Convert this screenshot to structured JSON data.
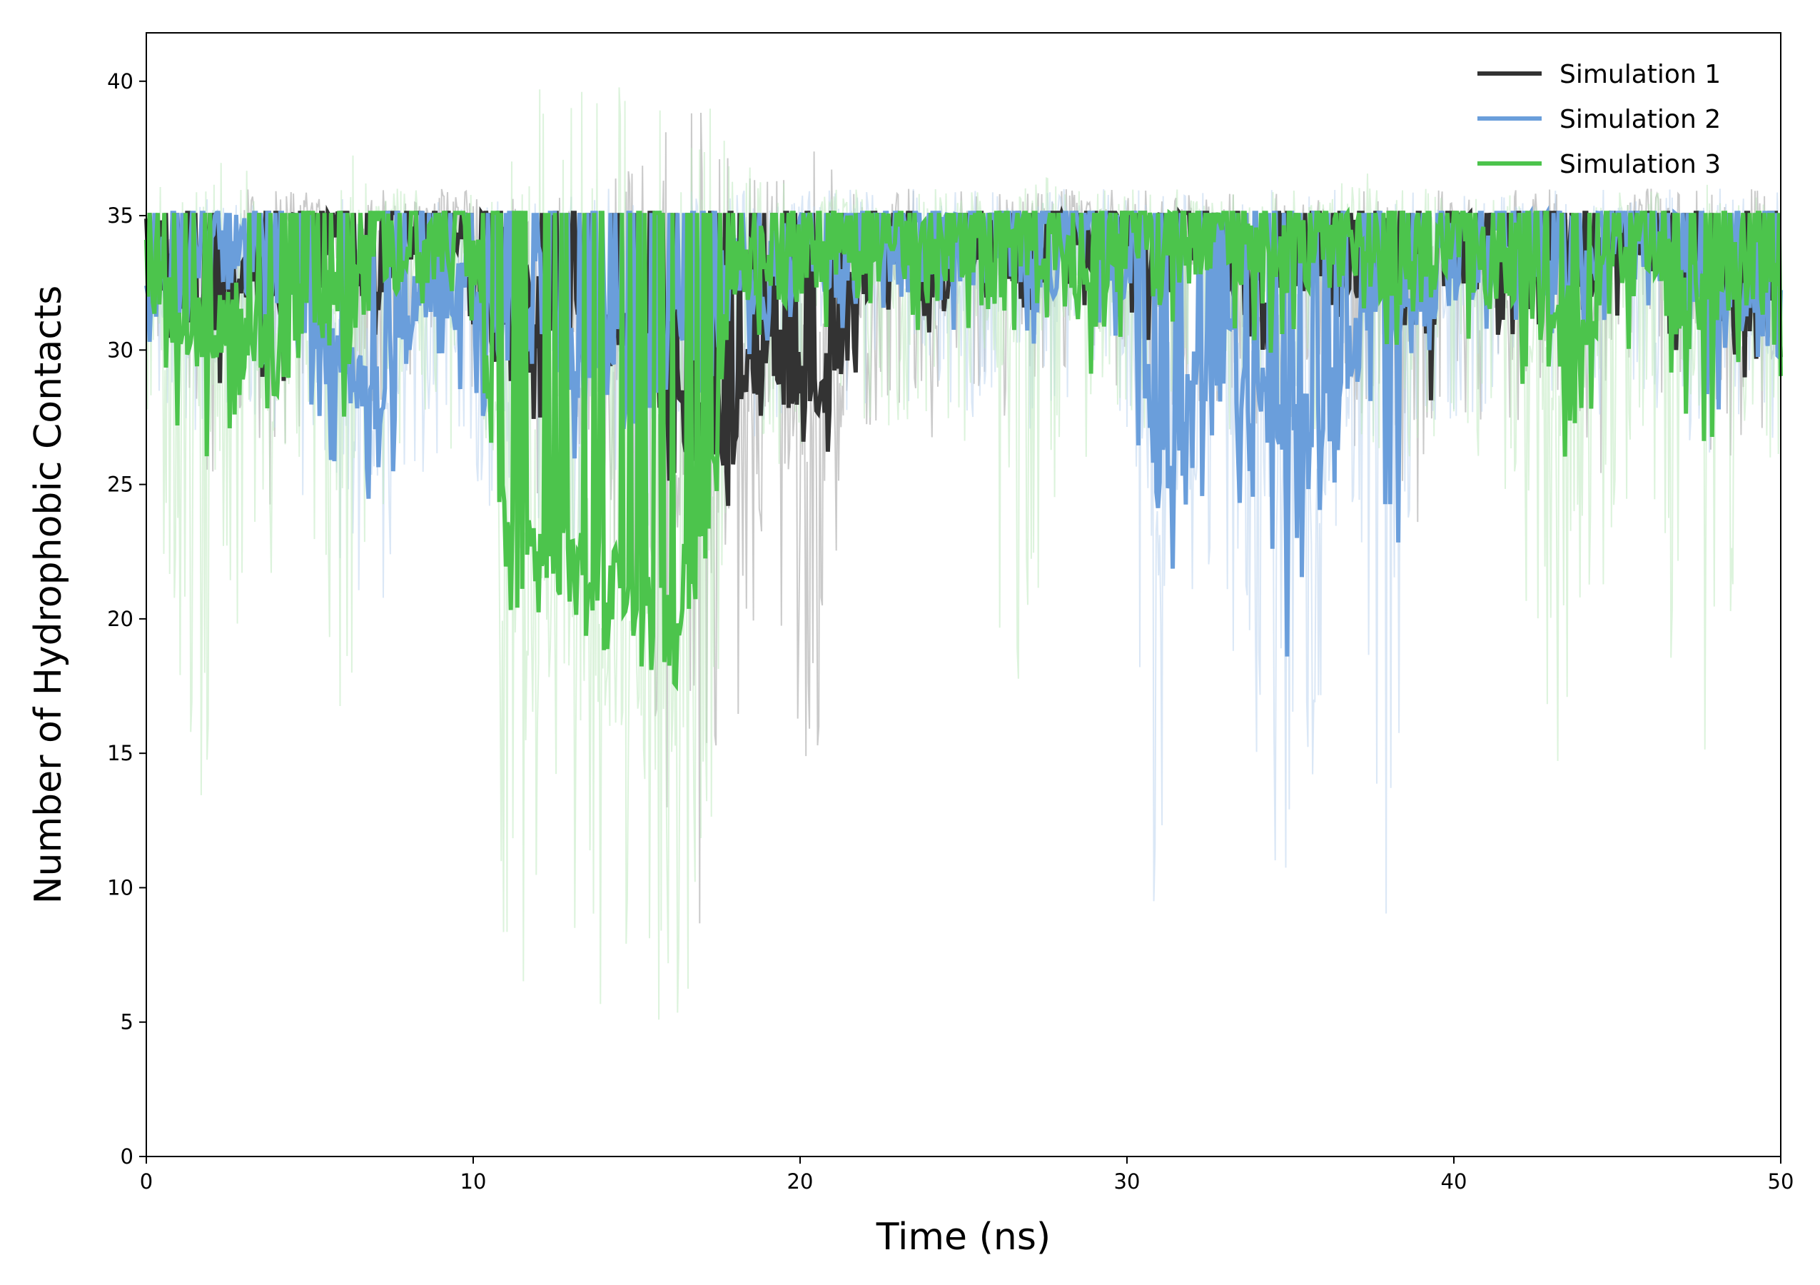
{
  "chart_data": {
    "type": "line",
    "title": "",
    "xlabel": "Time (ns)",
    "ylabel": "Number of Hydrophobic Contacts",
    "xlim": [
      0,
      50
    ],
    "ylim": [
      0,
      41.8
    ],
    "x_ticks": [
      0,
      10,
      20,
      30,
      40,
      50
    ],
    "y_ticks": [
      0,
      5,
      10,
      15,
      20,
      25,
      30,
      35,
      40
    ],
    "grid": false,
    "legend_position": "top-right",
    "series": [
      {
        "name": "Simulation 1",
        "color": "#333333",
        "raw_color": "#9e9e9e",
        "x": [
          0,
          1,
          2,
          3,
          4,
          5,
          6,
          7,
          8,
          9,
          10,
          11,
          12,
          13,
          14,
          15,
          16,
          17,
          18,
          19,
          20,
          21,
          22,
          23,
          24,
          25,
          26,
          27,
          28,
          29,
          30,
          31,
          32,
          33,
          34,
          35,
          36,
          37,
          38,
          39,
          40,
          41,
          42,
          43,
          44,
          45,
          46,
          47,
          48,
          49,
          50
        ],
        "smooth": [
          34,
          33,
          31,
          33,
          32,
          35,
          34,
          33,
          34,
          35,
          34,
          33,
          31,
          32,
          30,
          31,
          28,
          26,
          27,
          30,
          28,
          29,
          33,
          34,
          32,
          34,
          33,
          34,
          35,
          34,
          34,
          33,
          34,
          33,
          32,
          33,
          34,
          33,
          33,
          31,
          34,
          33,
          33,
          34,
          32,
          34,
          35,
          33,
          32,
          32,
          31
        ],
        "lower": [
          31,
          30,
          28,
          30,
          27,
          32,
          31,
          30,
          31,
          32,
          30,
          29,
          27,
          29,
          28,
          28,
          24,
          23,
          24,
          27,
          25,
          25,
          30,
          31,
          29,
          31,
          30,
          31,
          32,
          31,
          31,
          30,
          31,
          29,
          30,
          30,
          31,
          30,
          30,
          25,
          31,
          30,
          30,
          31,
          27,
          31,
          32,
          29,
          28,
          29,
          29
        ],
        "raw_min": [
          30,
          28,
          24,
          28,
          20,
          30,
          29,
          27,
          29,
          30,
          28,
          27,
          24,
          26,
          24,
          20,
          12,
          8,
          12,
          25,
          11,
          18,
          27,
          28,
          26,
          28,
          27,
          29,
          29,
          28,
          29,
          27,
          28,
          27,
          26,
          27,
          28,
          26,
          27,
          22,
          28,
          27,
          27,
          28,
          22,
          28,
          29,
          26,
          25,
          25,
          26
        ],
        "raw_max": [
          35,
          35,
          35,
          36,
          36,
          36,
          35,
          36,
          36,
          36,
          36,
          36,
          36,
          36,
          36,
          38,
          39,
          39,
          37,
          37,
          38,
          37,
          36,
          36,
          36,
          36,
          36,
          36,
          36,
          36,
          36,
          36,
          36,
          36,
          36,
          36,
          36,
          36,
          36,
          36,
          36,
          36,
          36,
          36,
          36,
          36,
          36,
          36,
          36,
          36,
          36
        ]
      },
      {
        "name": "Simulation 2",
        "color": "#6a9edb",
        "raw_color": "#bcd3ef",
        "x": [
          0,
          1,
          2,
          3,
          4,
          5,
          6,
          7,
          8,
          9,
          10,
          11,
          12,
          13,
          14,
          15,
          16,
          17,
          18,
          19,
          20,
          21,
          22,
          23,
          24,
          25,
          26,
          27,
          28,
          29,
          30,
          31,
          32,
          33,
          34,
          35,
          36,
          37,
          38,
          39,
          40,
          41,
          42,
          43,
          44,
          45,
          46,
          47,
          48,
          49,
          50
        ],
        "smooth": [
          33,
          32,
          34,
          33,
          32,
          31,
          29,
          28,
          31,
          32,
          31,
          30,
          32,
          29,
          31,
          28,
          30,
          31,
          33,
          32,
          34,
          33,
          34,
          33,
          34,
          33,
          34,
          33,
          34,
          34,
          33,
          25,
          29,
          30,
          28,
          26,
          27,
          30,
          31,
          32,
          33,
          33,
          34,
          33,
          33,
          34,
          34,
          33,
          31,
          32,
          31
        ],
        "lower": [
          30,
          29,
          31,
          30,
          29,
          27,
          25,
          23,
          27,
          29,
          28,
          26,
          28,
          25,
          27,
          24,
          27,
          28,
          30,
          29,
          31,
          30,
          31,
          30,
          31,
          30,
          31,
          30,
          31,
          31,
          29,
          19,
          24,
          25,
          22,
          18,
          23,
          27,
          20,
          29,
          30,
          30,
          31,
          30,
          30,
          31,
          31,
          30,
          27,
          29,
          29
        ],
        "raw_min": [
          27,
          26,
          28,
          27,
          26,
          24,
          22,
          18,
          24,
          26,
          25,
          22,
          23,
          21,
          23,
          21,
          24,
          25,
          27,
          26,
          28,
          27,
          28,
          27,
          28,
          27,
          28,
          27,
          28,
          28,
          25,
          5,
          12,
          18,
          14,
          6,
          17,
          24,
          6,
          26,
          27,
          27,
          28,
          27,
          27,
          28,
          28,
          27,
          24,
          26,
          26
        ],
        "raw_max": [
          35,
          35,
          36,
          36,
          36,
          35,
          36,
          35,
          36,
          36,
          36,
          36,
          36,
          36,
          36,
          36,
          36,
          36,
          36,
          36,
          36,
          36,
          36,
          36,
          36,
          36,
          36,
          36,
          36,
          36,
          36,
          36,
          36,
          36,
          36,
          36,
          36,
          36,
          36,
          36,
          36,
          36,
          36,
          36,
          36,
          36,
          36,
          36,
          36,
          36,
          36
        ]
      },
      {
        "name": "Simulation 3",
        "color": "#4cc44c",
        "raw_color": "#bfeabf",
        "x": [
          0,
          1,
          2,
          3,
          4,
          5,
          6,
          7,
          8,
          9,
          10,
          11,
          12,
          13,
          14,
          15,
          16,
          17,
          18,
          19,
          20,
          21,
          22,
          23,
          24,
          25,
          26,
          27,
          28,
          29,
          30,
          31,
          32,
          33,
          34,
          35,
          36,
          37,
          38,
          39,
          40,
          41,
          42,
          43,
          44,
          45,
          46,
          47,
          48,
          49,
          50
        ],
        "smooth": [
          33,
          31,
          30,
          31,
          29,
          32,
          31,
          33,
          34,
          33,
          34,
          22,
          22,
          22,
          21,
          21,
          20,
          22,
          33,
          33,
          33,
          34,
          34,
          33,
          33,
          34,
          32,
          34,
          33,
          32,
          34,
          33,
          34,
          34,
          33,
          33,
          34,
          34,
          33,
          33,
          34,
          33,
          33,
          30,
          31,
          33,
          34,
          31,
          32,
          33,
          32
        ],
        "lower": [
          29,
          27,
          24,
          27,
          25,
          28,
          27,
          30,
          31,
          30,
          31,
          20,
          20,
          20,
          18,
          18,
          16,
          18,
          30,
          30,
          30,
          31,
          31,
          30,
          30,
          31,
          28,
          30,
          30,
          28,
          31,
          30,
          31,
          31,
          30,
          29,
          31,
          31,
          30,
          29,
          31,
          29,
          29,
          24,
          27,
          29,
          31,
          26,
          25,
          30,
          29
        ],
        "raw_min": [
          26,
          18,
          10,
          20,
          22,
          24,
          16,
          22,
          27,
          26,
          26,
          6,
          6,
          6,
          5,
          5,
          3,
          5,
          26,
          26,
          25,
          26,
          26,
          26,
          26,
          26,
          18,
          14,
          26,
          26,
          27,
          26,
          27,
          27,
          26,
          25,
          27,
          27,
          26,
          26,
          27,
          25,
          22,
          14,
          18,
          22,
          26,
          14,
          14,
          26,
          26
        ],
        "raw_max": [
          37,
          37,
          38,
          37,
          36,
          37,
          38,
          36,
          36,
          36,
          36,
          40,
          40,
          40,
          40,
          40,
          40,
          40,
          37,
          37,
          36,
          36,
          36,
          36,
          36,
          36,
          37,
          37,
          36,
          36,
          36,
          36,
          36,
          36,
          36,
          36,
          36,
          37,
          36,
          36,
          36,
          36,
          36,
          36,
          36,
          36,
          36,
          37,
          36,
          36,
          36
        ]
      }
    ]
  }
}
